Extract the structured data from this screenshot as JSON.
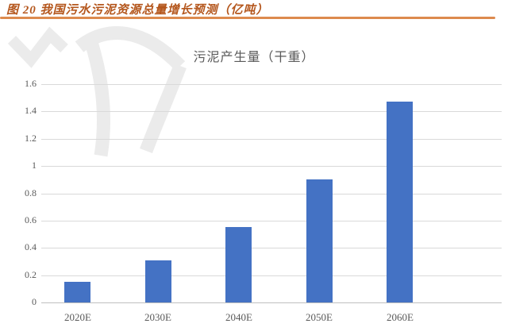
{
  "header": {
    "title": "图 20 我国污水污泥资源总量增长预测（亿吨）"
  },
  "colors": {
    "bar": "#4472c4",
    "header_text": "#b4561c",
    "header_rule": "#dd8a4e",
    "axis_text": "#595959",
    "title_text": "#595959",
    "gridline": "#d9d9d9",
    "baseline": "#bfbfbf",
    "watermark": "#ebebeb",
    "background": "#ffffff"
  },
  "chart_data": {
    "type": "bar",
    "title": "污泥产生量（干重）",
    "categories": [
      "2020E",
      "2030E",
      "2040E",
      "2050E",
      "2060E"
    ],
    "values": [
      0.15,
      0.31,
      0.55,
      0.9,
      1.47
    ],
    "unit": "亿吨",
    "xlabel": "",
    "ylabel": "",
    "ylim": [
      0,
      1.6
    ],
    "ytick_step": 0.2,
    "ytick_labels": [
      "0",
      "0.2",
      "0.4",
      "0.6",
      "0.8",
      "1",
      "1.2",
      "1.4",
      "1.6"
    ],
    "grid": true,
    "legend_position": "none",
    "bar_color": "#4472c4"
  }
}
